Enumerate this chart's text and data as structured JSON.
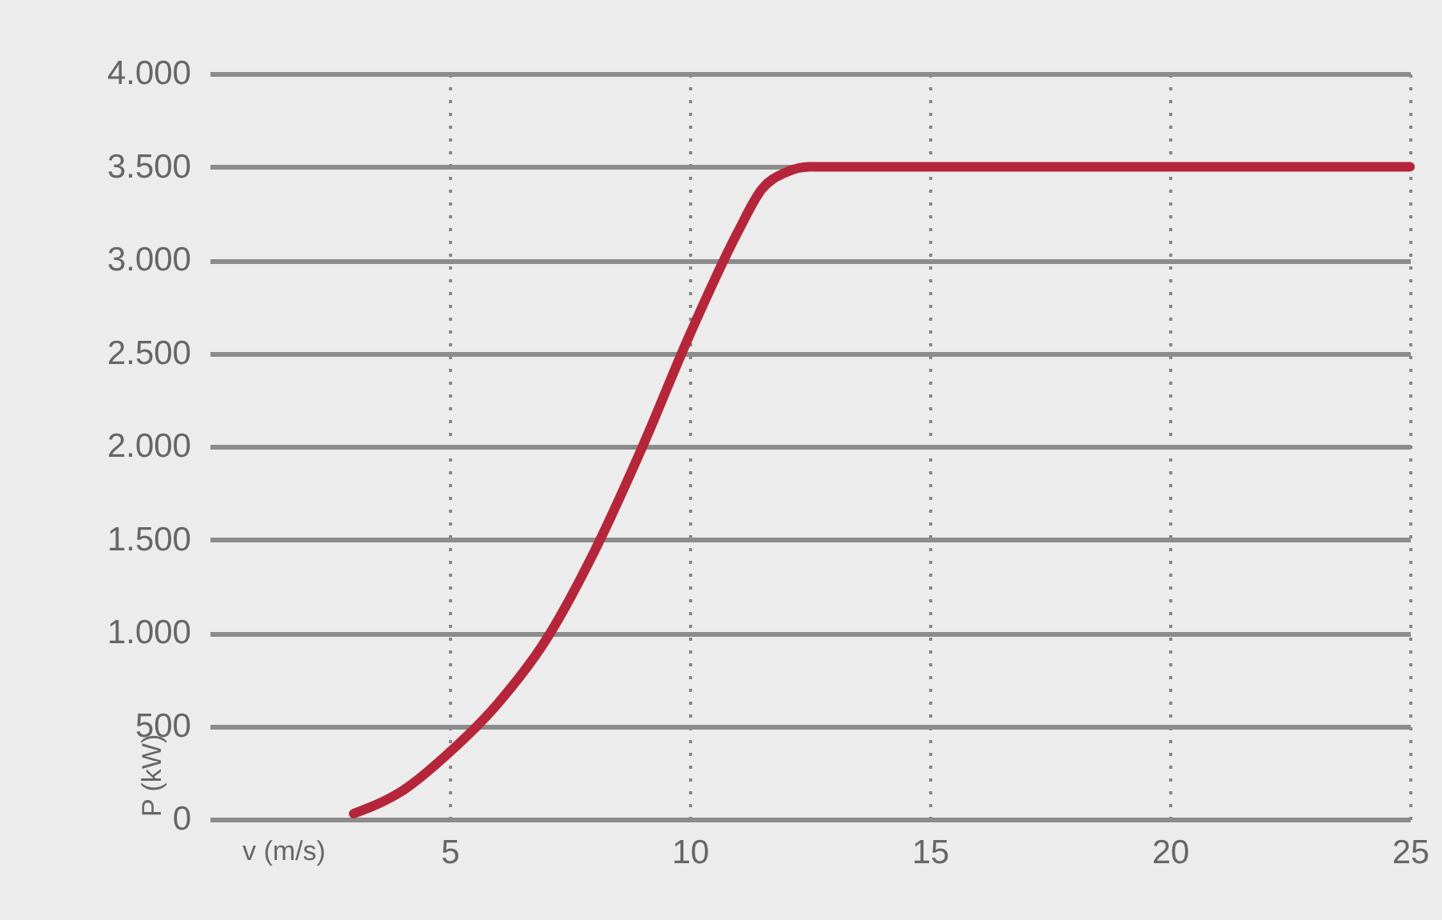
{
  "chart_data": {
    "type": "line",
    "xlabel": "v (m/s)",
    "ylabel": "P (kW)",
    "x": [
      3,
      4,
      5,
      6,
      7,
      8,
      9,
      10,
      11,
      11.5,
      12,
      12.5,
      15,
      20,
      25
    ],
    "series": [
      {
        "color": "#b5263b",
        "values": [
          30,
          150,
          360,
          620,
          960,
          1430,
          1990,
          2600,
          3150,
          3380,
          3470,
          3500,
          3500,
          3500,
          3500
        ]
      }
    ],
    "xlim": [
      0,
      25
    ],
    "xticks": [
      5,
      10,
      15,
      20,
      25
    ],
    "ylim": [
      0,
      4000
    ],
    "yticks": [
      {
        "value": 0,
        "label": "0"
      },
      {
        "value": 500,
        "label": "500"
      },
      {
        "value": 1000,
        "label": "1.000"
      },
      {
        "value": 1500,
        "label": "1.500"
      },
      {
        "value": 2000,
        "label": "2.000"
      },
      {
        "value": 2500,
        "label": "2.500"
      },
      {
        "value": 3000,
        "label": "3.000"
      },
      {
        "value": 3500,
        "label": "3.500"
      },
      {
        "value": 4000,
        "label": "4.000"
      }
    ],
    "grid": true,
    "marker": "none",
    "line_style": "solid"
  }
}
